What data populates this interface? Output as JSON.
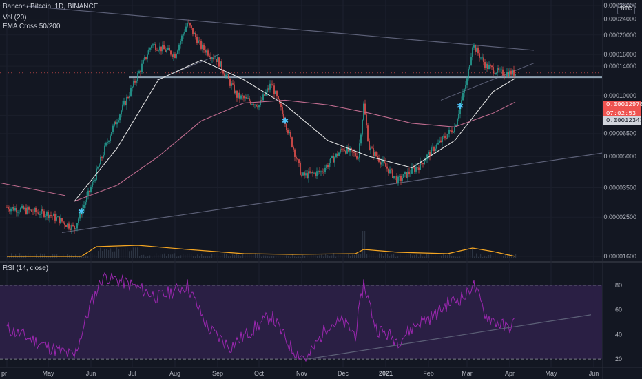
{
  "legend": {
    "symbol": "Bancor / Bitcoin, 1D, BINANCE",
    "vol": "Vol (20)",
    "ema": "EMA Cross 50/200",
    "rsi": "RSI (14, close)"
  },
  "currency_label": "BTC",
  "price_axis_ticks": [
    "0.00028000",
    "0.00024000",
    "0.00020000",
    "0.00016000",
    "0.00014000",
    "0.00012978",
    "0.00010000",
    "0.00008000",
    "0.00006500",
    "0.00005000",
    "0.00003500",
    "0.00002500",
    "0.00001600"
  ],
  "rsi_axis_ticks": [
    "80",
    "60",
    "40",
    "20"
  ],
  "time_axis_ticks": [
    "pr",
    "May",
    "Jun",
    "Jul",
    "Aug",
    "Sep",
    "Oct",
    "Nov",
    "Dec",
    "2021",
    "Feb",
    "Mar",
    "Apr",
    "May",
    "Jun"
  ],
  "badges": {
    "last_price": "0.00012978",
    "countdown": "07:02:53",
    "level_price": "0.00012343"
  },
  "colors": {
    "background": "#131722",
    "up": "#26a69a",
    "down": "#ef5350",
    "ema50": "#e0e0e0",
    "ema200": "#c06c8f",
    "volume_ma": "#f5a623",
    "rsi_line": "#9c27b0",
    "rsi_band": "#2a1f44",
    "trend_line": "#5d6178",
    "support_line": "#8fa2b2"
  },
  "chart_data": {
    "type": "candlestick",
    "title": "Bancor / Bitcoin, 1D, BINANCE",
    "x_range": [
      "2020-04",
      "2021-06"
    ],
    "y_scale": "log",
    "ylim": [
      1.6e-05,
      0.00028
    ],
    "series": [
      {
        "name": "EMA 50",
        "points": [
          [
            "2020-05-20",
            3e-05
          ],
          [
            "2020-06-20",
            5.5e-05
          ],
          [
            "2020-07-20",
            0.00012
          ],
          [
            "2020-08-20",
            0.00015
          ],
          [
            "2020-09-20",
            0.00012
          ],
          [
            "2020-10-20",
            9e-05
          ],
          [
            "2020-11-20",
            6e-05
          ],
          [
            "2020-12-20",
            5e-05
          ],
          [
            "2021-01-20",
            4.4e-05
          ],
          [
            "2021-02-20",
            6e-05
          ],
          [
            "2021-03-20",
            0.000105
          ],
          [
            "2021-04-05",
            0.000122
          ]
        ]
      },
      {
        "name": "EMA 200",
        "points": [
          [
            "2020-05-20",
            3e-05
          ],
          [
            "2020-06-20",
            3.6e-05
          ],
          [
            "2020-07-20",
            5e-05
          ],
          [
            "2020-08-20",
            7.5e-05
          ],
          [
            "2020-09-20",
            9.2e-05
          ],
          [
            "2020-10-20",
            9.5e-05
          ],
          [
            "2020-11-20",
            9e-05
          ],
          [
            "2020-12-20",
            8.2e-05
          ],
          [
            "2021-01-20",
            7.3e-05
          ],
          [
            "2021-02-20",
            7e-05
          ],
          [
            "2021-03-20",
            8.2e-05
          ],
          [
            "2021-04-05",
            9.3e-05
          ]
        ]
      }
    ],
    "close_path": [
      [
        "2020-04-01",
        2.8e-05
      ],
      [
        "2020-05-01",
        2.6e-05
      ],
      [
        "2020-05-20",
        2.2e-05
      ],
      [
        "2020-06-01",
        3.5e-05
      ],
      [
        "2020-06-15",
        6.5e-05
      ],
      [
        "2020-07-01",
        0.00011
      ],
      [
        "2020-07-15",
        0.00018
      ],
      [
        "2020-08-01",
        0.00016
      ],
      [
        "2020-08-10",
        0.00023
      ],
      [
        "2020-08-20",
        0.000175
      ],
      [
        "2020-09-01",
        0.00015
      ],
      [
        "2020-09-15",
        0.0001
      ],
      [
        "2020-10-01",
        9e-05
      ],
      [
        "2020-10-10",
        0.000115
      ],
      [
        "2020-10-20",
        7.5e-05
      ],
      [
        "2020-11-01",
        4e-05
      ],
      [
        "2020-11-15",
        4.2e-05
      ],
      [
        "2020-12-01",
        5.5e-05
      ],
      [
        "2020-12-12",
        5e-05
      ],
      [
        "2020-12-16",
        9e-05
      ],
      [
        "2020-12-20",
        5.5e-05
      ],
      [
        "2021-01-10",
        3.8e-05
      ],
      [
        "2021-01-25",
        4.5e-05
      ],
      [
        "2021-02-05",
        5.5e-05
      ],
      [
        "2021-02-20",
        7e-05
      ],
      [
        "2021-03-01",
        0.00012
      ],
      [
        "2021-03-05",
        0.00018
      ],
      [
        "2021-03-15",
        0.00014
      ],
      [
        "2021-03-25",
        0.00013
      ],
      [
        "2021-04-05",
        0.00012978
      ]
    ],
    "support_level": 0.00012343,
    "ema_cross_markers": [
      "2020-05-25",
      "2020-10-20",
      "2021-02-24"
    ],
    "rsi": {
      "ylim": [
        15,
        90
      ],
      "overbought": 80,
      "oversold": 20,
      "points": [
        [
          "2020-04-01",
          45
        ],
        [
          "2020-05-01",
          30
        ],
        [
          "2020-05-20",
          22
        ],
        [
          "2020-06-01",
          65
        ],
        [
          "2020-06-10",
          88
        ],
        [
          "2020-07-01",
          80
        ],
        [
          "2020-07-20",
          70
        ],
        [
          "2020-08-10",
          80
        ],
        [
          "2020-08-25",
          45
        ],
        [
          "2020-09-10",
          30
        ],
        [
          "2020-10-01",
          48
        ],
        [
          "2020-10-10",
          55
        ],
        [
          "2020-10-25",
          28
        ],
        [
          "2020-11-05",
          20
        ],
        [
          "2020-11-20",
          48
        ],
        [
          "2020-12-01",
          50
        ],
        [
          "2020-12-10",
          40
        ],
        [
          "2020-12-16",
          82
        ],
        [
          "2020-12-25",
          45
        ],
        [
          "2021-01-10",
          35
        ],
        [
          "2021-01-25",
          50
        ],
        [
          "2021-02-05",
          55
        ],
        [
          "2021-02-15",
          65
        ],
        [
          "2021-03-01",
          72
        ],
        [
          "2021-03-05",
          82
        ],
        [
          "2021-03-15",
          55
        ],
        [
          "2021-03-30",
          45
        ],
        [
          "2021-04-05",
          50
        ]
      ]
    }
  }
}
